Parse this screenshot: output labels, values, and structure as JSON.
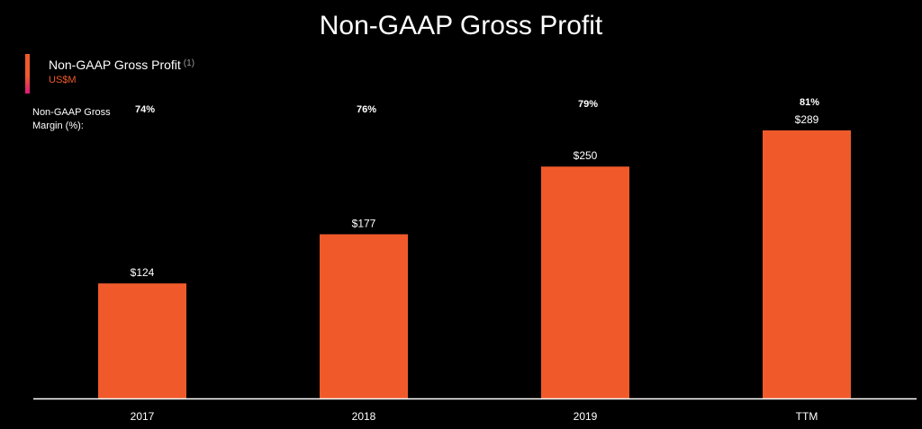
{
  "slide": {
    "title": "Non-GAAP Gross Profit"
  },
  "legend": {
    "label": "Non-GAAP Gross Profit",
    "footnote": "(1)",
    "unit": "US$M"
  },
  "margin_row": {
    "label": "Non-GAAP Gross Margin (%):"
  },
  "colors": {
    "bar": "#f05a2b",
    "legend_swatch_top": "#f05a2b",
    "legend_swatch_bottom": "#e0177e",
    "unit_text": "#f05a2b",
    "axis": "#ffffff"
  },
  "chart_data": {
    "type": "bar",
    "title": "Non-GAAP Gross Profit",
    "xlabel": "",
    "ylabel": "",
    "unit": "US$M",
    "categories": [
      "2017",
      "2018",
      "2019",
      "TTM"
    ],
    "series": [
      {
        "name": "Non-GAAP Gross Profit",
        "values": [
          124,
          177,
          250,
          289
        ],
        "value_labels": [
          "$124",
          "$177",
          "$250",
          "$289"
        ]
      }
    ],
    "margins": [
      "74%",
      "76%",
      "79%",
      "81%"
    ],
    "ylim": [
      0,
      289
    ],
    "grid": false,
    "legend_position": "top-left"
  }
}
